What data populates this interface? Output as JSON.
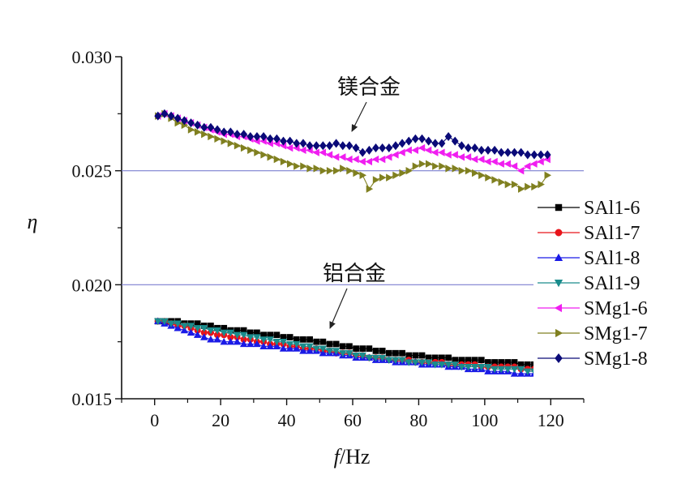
{
  "chart_data": {
    "type": "line",
    "xlabel_italic": "f",
    "xlabel_rest": "/Hz",
    "ylabel": "η",
    "xlim": [
      -10,
      130
    ],
    "ylim": [
      0.015,
      0.03
    ],
    "x_ticks": [
      "0",
      "20",
      "40",
      "60",
      "80",
      "100",
      "120"
    ],
    "y_ticks": [
      "0.015",
      "0.020",
      "0.025",
      "0.030"
    ],
    "reference_lines": [
      0.02,
      0.025
    ],
    "legend_position": "right",
    "annotations": [
      {
        "text": "镁合金",
        "points_to": [
          60,
          0.0257
        ]
      },
      {
        "text": "铝合金",
        "points_to": [
          53,
          0.0174
        ]
      }
    ],
    "x": [
      1,
      3,
      5,
      7,
      9,
      11,
      13,
      15,
      17,
      19,
      21,
      23,
      25,
      27,
      29,
      31,
      33,
      35,
      37,
      39,
      41,
      43,
      45,
      47,
      49,
      51,
      53,
      55,
      57,
      59,
      61,
      63,
      65,
      67,
      69,
      71,
      73,
      75,
      77,
      79,
      81,
      83,
      85,
      87,
      89,
      91,
      93,
      95,
      97,
      99,
      101,
      103,
      105,
      107,
      109,
      111,
      113,
      115,
      117,
      119
    ],
    "series": [
      {
        "name": "SAl1-6",
        "color": "#000000",
        "marker": "square",
        "values": [
          0.0184,
          0.0184,
          0.0184,
          0.0184,
          0.0183,
          0.0183,
          0.0183,
          0.0182,
          0.0182,
          0.0181,
          0.0181,
          0.018,
          0.018,
          0.018,
          0.0179,
          0.0179,
          0.0178,
          0.0178,
          0.0178,
          0.0177,
          0.0177,
          0.0176,
          0.0176,
          0.0176,
          0.0175,
          0.0175,
          0.0174,
          0.0174,
          0.0173,
          0.0173,
          0.0172,
          0.0172,
          0.0172,
          0.0171,
          0.0171,
          0.017,
          0.017,
          0.017,
          0.0169,
          0.0169,
          0.0169,
          0.0168,
          0.0168,
          0.0168,
          0.0168,
          0.0167,
          0.0167,
          0.0167,
          0.0167,
          0.0167,
          0.0166,
          0.0166,
          0.0166,
          0.0166,
          0.0166,
          0.0165,
          0.0165,
          0.0165,
          0.0165,
          0.0164
        ]
      },
      {
        "name": "SAl1-7",
        "color": "#e8141a",
        "marker": "circle",
        "values": [
          0.0184,
          0.0184,
          0.0183,
          0.0182,
          0.0182,
          0.0181,
          0.018,
          0.0179,
          0.0179,
          0.0178,
          0.0178,
          0.0177,
          0.0177,
          0.0176,
          0.0176,
          0.0175,
          0.0175,
          0.0174,
          0.0174,
          0.0174,
          0.0173,
          0.0173,
          0.0172,
          0.0172,
          0.0172,
          0.0171,
          0.0171,
          0.017,
          0.017,
          0.017,
          0.0169,
          0.0169,
          0.0168,
          0.0168,
          0.0168,
          0.0167,
          0.0167,
          0.0167,
          0.0167,
          0.0166,
          0.0166,
          0.0166,
          0.0166,
          0.0166,
          0.0165,
          0.0165,
          0.0165,
          0.0165,
          0.0165,
          0.0164,
          0.0164,
          0.0164,
          0.0164,
          0.0164,
          0.0164,
          0.0163,
          0.0163,
          0.0163,
          0.0163,
          0.0163
        ]
      },
      {
        "name": "SAl1-8",
        "color": "#1a1ae6",
        "marker": "triangle-up",
        "values": [
          0.0184,
          0.0183,
          0.0182,
          0.0181,
          0.018,
          0.0179,
          0.0178,
          0.0177,
          0.0176,
          0.0176,
          0.0175,
          0.0175,
          0.0175,
          0.0174,
          0.0174,
          0.0174,
          0.0173,
          0.0173,
          0.0173,
          0.0172,
          0.0172,
          0.0172,
          0.0171,
          0.0171,
          0.0171,
          0.017,
          0.017,
          0.017,
          0.0169,
          0.0169,
          0.0168,
          0.0168,
          0.0168,
          0.0167,
          0.0167,
          0.0167,
          0.0166,
          0.0166,
          0.0166,
          0.0166,
          0.0165,
          0.0165,
          0.0165,
          0.0165,
          0.0164,
          0.0164,
          0.0164,
          0.0163,
          0.0163,
          0.0163,
          0.0162,
          0.0162,
          0.0162,
          0.0162,
          0.0161,
          0.0161,
          0.0161,
          0.0161,
          0.016,
          0.016
        ]
      },
      {
        "name": "SAl1-9",
        "color": "#1a8c8c",
        "marker": "triangle-down",
        "values": [
          0.0184,
          0.0184,
          0.0183,
          0.0183,
          0.0182,
          0.0182,
          0.0181,
          0.0181,
          0.018,
          0.018,
          0.0179,
          0.0179,
          0.0178,
          0.0178,
          0.0177,
          0.0177,
          0.0176,
          0.0176,
          0.0175,
          0.0175,
          0.0174,
          0.0174,
          0.0173,
          0.0173,
          0.0172,
          0.0172,
          0.0171,
          0.0171,
          0.017,
          0.017,
          0.0169,
          0.0169,
          0.0168,
          0.0168,
          0.0168,
          0.0167,
          0.0167,
          0.0167,
          0.0166,
          0.0166,
          0.0166,
          0.0166,
          0.0165,
          0.0165,
          0.0165,
          0.0165,
          0.0164,
          0.0164,
          0.0164,
          0.0164,
          0.0164,
          0.0163,
          0.0163,
          0.0163,
          0.0163,
          0.0163,
          0.0162,
          0.0162,
          0.0162,
          0.0162
        ]
      },
      {
        "name": "SMg1-6",
        "color": "#f01ef0",
        "marker": "triangle-left",
        "values": [
          0.0274,
          0.0275,
          0.0274,
          0.0273,
          0.0272,
          0.0271,
          0.027,
          0.0269,
          0.0268,
          0.0267,
          0.0266,
          0.0266,
          0.0265,
          0.0265,
          0.0264,
          0.0263,
          0.0263,
          0.0262,
          0.0262,
          0.0261,
          0.026,
          0.026,
          0.0259,
          0.0259,
          0.0258,
          0.0258,
          0.0257,
          0.0256,
          0.0256,
          0.0255,
          0.0255,
          0.0254,
          0.0254,
          0.0255,
          0.0255,
          0.0256,
          0.0257,
          0.0258,
          0.0259,
          0.0259,
          0.026,
          0.0259,
          0.0258,
          0.0258,
          0.0257,
          0.0257,
          0.0256,
          0.0256,
          0.0255,
          0.0255,
          0.0254,
          0.0254,
          0.0253,
          0.0253,
          0.0252,
          0.025,
          0.0252,
          0.0253,
          0.0254,
          0.0255
        ]
      },
      {
        "name": "SMg1-7",
        "color": "#808020",
        "marker": "triangle-right",
        "values": [
          0.0274,
          0.0275,
          0.0273,
          0.0271,
          0.027,
          0.0268,
          0.0267,
          0.0266,
          0.0265,
          0.0264,
          0.0263,
          0.0262,
          0.0261,
          0.026,
          0.0259,
          0.0258,
          0.0257,
          0.0256,
          0.0255,
          0.0254,
          0.0253,
          0.0252,
          0.0252,
          0.0251,
          0.0251,
          0.025,
          0.025,
          0.025,
          0.0251,
          0.025,
          0.0249,
          0.0248,
          0.0242,
          0.0246,
          0.0247,
          0.0247,
          0.0248,
          0.0249,
          0.025,
          0.0252,
          0.0253,
          0.0253,
          0.0252,
          0.0252,
          0.0251,
          0.0251,
          0.025,
          0.025,
          0.0249,
          0.0248,
          0.0247,
          0.0246,
          0.0245,
          0.0244,
          0.0244,
          0.0242,
          0.0243,
          0.0243,
          0.0244,
          0.0248
        ]
      },
      {
        "name": "SMg1-8",
        "color": "#0a0a78",
        "marker": "diamond",
        "values": [
          0.0274,
          0.0275,
          0.0274,
          0.0273,
          0.0272,
          0.0271,
          0.027,
          0.0269,
          0.0269,
          0.0268,
          0.0267,
          0.0267,
          0.0266,
          0.0266,
          0.0265,
          0.0265,
          0.0265,
          0.0264,
          0.0264,
          0.0263,
          0.0263,
          0.0262,
          0.0262,
          0.0261,
          0.0261,
          0.0261,
          0.0261,
          0.0262,
          0.0261,
          0.0261,
          0.026,
          0.0258,
          0.0259,
          0.026,
          0.026,
          0.026,
          0.0261,
          0.0262,
          0.0263,
          0.0264,
          0.0264,
          0.0263,
          0.0262,
          0.0262,
          0.0265,
          0.0263,
          0.0261,
          0.026,
          0.026,
          0.0259,
          0.0259,
          0.0259,
          0.0258,
          0.0258,
          0.0258,
          0.0258,
          0.0257,
          0.0257,
          0.0257,
          0.0257
        ]
      }
    ]
  }
}
